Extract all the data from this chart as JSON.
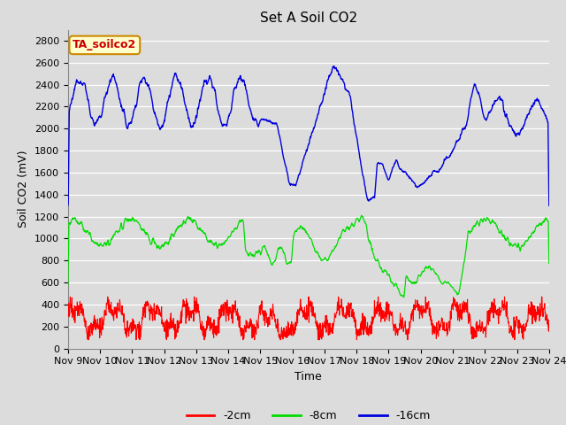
{
  "title": "Set A Soil CO2",
  "ylabel": "Soil CO2 (mV)",
  "xlabel": "Time",
  "annotation": "TA_soilco2",
  "bg_color": "#dcdcdc",
  "grid_color": "#ffffff",
  "xticklabels": [
    "Nov 9",
    "Nov 10",
    "Nov 11",
    "Nov 12",
    "Nov 13",
    "Nov 14",
    "Nov 15",
    "Nov 16",
    "Nov 17",
    "Nov 18",
    "Nov 19",
    "Nov 20",
    "Nov 21",
    "Nov 22",
    "Nov 23",
    "Nov 24"
  ],
  "ylim": [
    0,
    2800
  ],
  "yticks": [
    0,
    200,
    400,
    600,
    800,
    1000,
    1200,
    1400,
    1600,
    1800,
    2000,
    2200,
    2400,
    2600,
    2800
  ],
  "line_colors": {
    "2cm": "#ff0000",
    "8cm": "#00dd00",
    "16cm": "#0000dd"
  },
  "legend_labels": [
    "-2cm",
    "-8cm",
    "-16cm"
  ],
  "title_fontsize": 11,
  "label_fontsize": 9,
  "tick_fontsize": 8
}
